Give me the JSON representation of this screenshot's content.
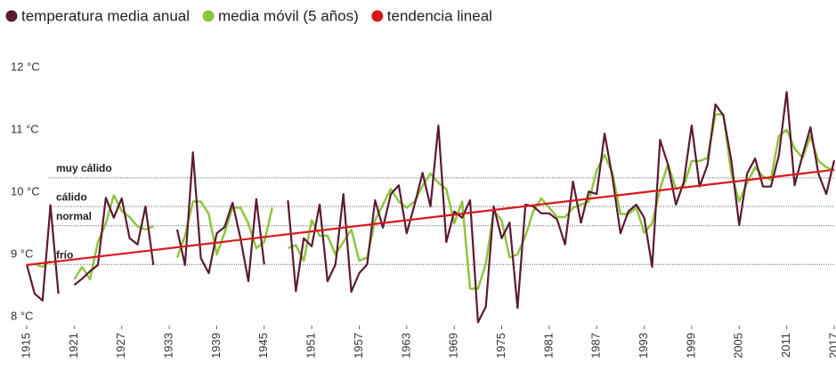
{
  "chart_data": {
    "type": "line",
    "x": [
      1915,
      1916,
      1917,
      1918,
      1919,
      1920,
      1921,
      1922,
      1923,
      1924,
      1925,
      1926,
      1927,
      1928,
      1929,
      1930,
      1931,
      1932,
      1933,
      1934,
      1935,
      1936,
      1937,
      1938,
      1939,
      1940,
      1941,
      1942,
      1943,
      1944,
      1945,
      1946,
      1947,
      1948,
      1949,
      1950,
      1951,
      1952,
      1953,
      1954,
      1955,
      1956,
      1957,
      1958,
      1959,
      1960,
      1961,
      1962,
      1963,
      1964,
      1965,
      1966,
      1967,
      1968,
      1969,
      1970,
      1971,
      1972,
      1973,
      1974,
      1975,
      1976,
      1977,
      1978,
      1979,
      1980,
      1981,
      1982,
      1983,
      1984,
      1985,
      1986,
      1987,
      1988,
      1989,
      1990,
      1991,
      1992,
      1993,
      1994,
      1995,
      1996,
      1997,
      1998,
      1999,
      2000,
      2001,
      2002,
      2003,
      2004,
      2005,
      2006,
      2007,
      2008,
      2009,
      2010,
      2011,
      2012,
      2013,
      2014,
      2015,
      2016,
      2017
    ],
    "series": [
      {
        "name": "media móvil (5 años)",
        "color": "#8dc63f",
        "width": 2.5,
        "values": [
          null,
          8.85,
          8.8,
          8.9,
          null,
          null,
          8.6,
          8.8,
          8.6,
          9.2,
          9.5,
          9.95,
          9.7,
          9.6,
          9.45,
          9.4,
          9.45,
          null,
          null,
          8.95,
          9.3,
          9.85,
          9.85,
          9.65,
          9.0,
          9.35,
          9.75,
          9.75,
          9.5,
          9.1,
          9.2,
          9.75,
          null,
          9.1,
          9.15,
          8.9,
          9.55,
          9.3,
          9.3,
          9.0,
          9.2,
          9.4,
          8.9,
          8.95,
          9.55,
          9.8,
          10.05,
          9.85,
          9.75,
          9.85,
          10.1,
          10.3,
          10.15,
          10.05,
          9.5,
          9.85,
          8.45,
          8.45,
          8.85,
          9.7,
          9.55,
          8.95,
          9.0,
          9.3,
          9.7,
          9.9,
          9.75,
          9.6,
          9.6,
          9.75,
          9.8,
          9.85,
          10.35,
          10.6,
          10.3,
          9.65,
          9.65,
          9.75,
          9.35,
          9.5,
          10.05,
          10.45,
          10.05,
          10.1,
          10.5,
          10.5,
          10.55,
          11.25,
          11.25,
          10.3,
          9.85,
          10.15,
          10.4,
          10.25,
          10.2,
          10.9,
          11.0,
          10.7,
          10.55,
          10.9,
          10.5,
          10.4,
          10.35
        ]
      },
      {
        "name": "temperatura media anual",
        "color": "#5c1a33",
        "width": 2.2,
        "values": [
          8.84,
          8.37,
          8.26,
          9.79,
          8.37,
          null,
          8.51,
          8.61,
          8.73,
          8.83,
          9.91,
          9.59,
          9.9,
          9.26,
          9.16,
          9.77,
          8.83,
          null,
          null,
          9.4,
          8.83,
          10.64,
          8.94,
          8.7,
          9.34,
          9.44,
          9.83,
          9.26,
          8.57,
          9.89,
          8.84,
          null,
          null,
          9.87,
          8.41,
          9.26,
          9.13,
          9.8,
          8.57,
          8.84,
          9.97,
          8.4,
          8.7,
          8.84,
          9.87,
          9.43,
          9.97,
          10.11,
          9.34,
          9.8,
          10.31,
          9.77,
          11.07,
          9.2,
          9.69,
          9.59,
          9.87,
          7.91,
          8.16,
          9.77,
          9.26,
          9.51,
          8.14,
          9.8,
          9.77,
          9.66,
          9.66,
          9.56,
          9.16,
          10.17,
          9.51,
          10.01,
          9.97,
          10.94,
          10.23,
          9.34,
          9.69,
          9.8,
          9.59,
          8.8,
          10.84,
          10.44,
          9.8,
          10.16,
          11.07,
          10.09,
          10.44,
          11.41,
          11.23,
          10.51,
          9.47,
          10.3,
          10.54,
          10.09,
          10.09,
          10.59,
          11.61,
          10.11,
          10.59,
          11.04,
          10.3,
          9.97,
          10.51
        ]
      },
      {
        "name": "tendencia lineal",
        "color": "#d7191c",
        "width": 2.2,
        "x": [
          1915,
          2017
        ],
        "values": [
          8.83,
          10.36
        ]
      }
    ],
    "legend_order": [
      1,
      0,
      2
    ],
    "annotations": [
      {
        "label": "muy cálido",
        "value": 10.23
      },
      {
        "label": "cálido",
        "value": 9.77
      },
      {
        "label": "normal",
        "value": 9.46
      },
      {
        "label": "frío",
        "value": 8.84
      }
    ],
    "xlim": [
      1915,
      2017
    ],
    "xticks": [
      1915,
      1921,
      1927,
      1933,
      1939,
      1945,
      1951,
      1957,
      1963,
      1969,
      1975,
      1981,
      1987,
      1993,
      1999,
      2005,
      2011,
      2017
    ],
    "ylim": [
      7.8,
      12.2
    ],
    "yticks": [
      {
        "value": 8,
        "label": "8 °C"
      },
      {
        "value": 9,
        "label": "9 °C"
      },
      {
        "value": 10,
        "label": "10 °C"
      },
      {
        "value": 11,
        "label": "11 °C"
      },
      {
        "value": 12,
        "label": "12 °C"
      }
    ],
    "grid": false
  }
}
